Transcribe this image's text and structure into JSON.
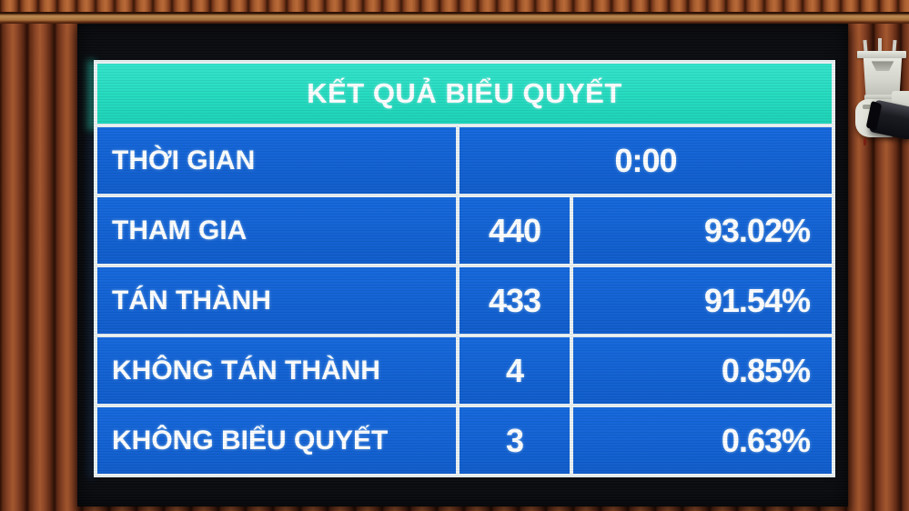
{
  "board": {
    "title": "KẾT QUẢ BIỂU QUYẾT",
    "time_row": {
      "label": "THỜI GIAN",
      "value": "0:00"
    },
    "rows": [
      {
        "label": "THAM GIA",
        "count": "440",
        "percent": "93.02%"
      },
      {
        "label": "TÁN THÀNH",
        "count": "433",
        "percent": "91.54%"
      },
      {
        "label": "KHÔNG TÁN THÀNH",
        "count": "4",
        "percent": "0.85%"
      },
      {
        "label": "KHÔNG BIỂU QUYẾT",
        "count": "3",
        "percent": "0.63%"
      }
    ],
    "colors": {
      "header_bg": "#27ddc3",
      "cell_bg": "#1263d6",
      "grid_lines": "#e9f0f2",
      "text": "#ffffff",
      "screen_bg": "#0a0c10"
    }
  }
}
